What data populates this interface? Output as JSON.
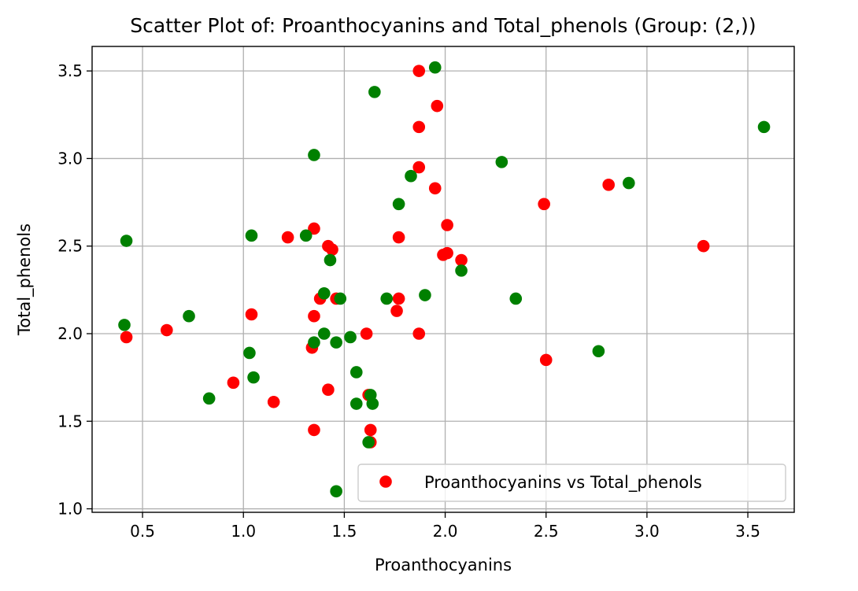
{
  "chart_data": {
    "type": "scatter",
    "title": "Scatter Plot of: Proanthocyanins and Total_phenols (Group: (2,))",
    "xlabel": "Proanthocyanins",
    "ylabel": "Total_phenols",
    "xlim": [
      0.25,
      3.73
    ],
    "ylim": [
      0.98,
      3.64
    ],
    "xticks": [
      0.5,
      1.0,
      1.5,
      2.0,
      2.5,
      3.0,
      3.5
    ],
    "xtick_labels": [
      "0.5",
      "1.0",
      "1.5",
      "2.0",
      "2.5",
      "3.0",
      "3.5"
    ],
    "yticks": [
      1.0,
      1.5,
      2.0,
      2.5,
      3.0,
      3.5
    ],
    "ytick_labels": [
      "1.0",
      "1.5",
      "2.0",
      "2.5",
      "3.0",
      "3.5"
    ],
    "grid": true,
    "legend_position": "lower right",
    "legend_label": "Proanthocyanins vs Total_phenols",
    "colors": {
      "red": "#ff0000",
      "green": "#008000"
    },
    "series": [
      {
        "color": "#ff0000",
        "points": [
          [
            1.87,
            3.5
          ],
          [
            1.96,
            3.3
          ],
          [
            1.87,
            3.18
          ],
          [
            1.87,
            2.95
          ],
          [
            1.95,
            2.83
          ],
          [
            2.01,
            2.62
          ],
          [
            1.77,
            2.55
          ],
          [
            1.99,
            2.45
          ],
          [
            2.01,
            2.46
          ],
          [
            2.08,
            2.42
          ],
          [
            2.49,
            2.74
          ],
          [
            2.81,
            2.85
          ],
          [
            3.28,
            2.5
          ],
          [
            1.77,
            2.2
          ],
          [
            1.76,
            2.13
          ],
          [
            1.87,
            2.0
          ],
          [
            2.5,
            1.85
          ],
          [
            1.35,
            2.6
          ],
          [
            1.22,
            2.55
          ],
          [
            1.42,
            2.5
          ],
          [
            1.44,
            2.48
          ],
          [
            1.38,
            2.2
          ],
          [
            1.46,
            2.2
          ],
          [
            1.35,
            2.1
          ],
          [
            1.04,
            2.11
          ],
          [
            0.62,
            2.02
          ],
          [
            0.42,
            1.98
          ],
          [
            1.34,
            1.92
          ],
          [
            1.61,
            2.0
          ],
          [
            0.95,
            1.72
          ],
          [
            1.42,
            1.68
          ],
          [
            1.15,
            1.61
          ],
          [
            1.62,
            1.65
          ],
          [
            1.35,
            1.45
          ],
          [
            1.63,
            1.45
          ],
          [
            1.63,
            1.38
          ]
        ]
      },
      {
        "color": "#008000",
        "points": [
          [
            1.95,
            3.52
          ],
          [
            1.65,
            3.38
          ],
          [
            3.58,
            3.18
          ],
          [
            1.35,
            3.02
          ],
          [
            2.28,
            2.98
          ],
          [
            1.83,
            2.9
          ],
          [
            2.91,
            2.86
          ],
          [
            1.77,
            2.74
          ],
          [
            0.42,
            2.53
          ],
          [
            1.04,
            2.56
          ],
          [
            1.31,
            2.56
          ],
          [
            1.43,
            2.42
          ],
          [
            2.08,
            2.36
          ],
          [
            1.4,
            2.23
          ],
          [
            1.48,
            2.2
          ],
          [
            1.71,
            2.2
          ],
          [
            1.9,
            2.22
          ],
          [
            2.35,
            2.2
          ],
          [
            0.41,
            2.05
          ],
          [
            0.73,
            2.1
          ],
          [
            1.03,
            1.89
          ],
          [
            1.4,
            2.0
          ],
          [
            1.35,
            1.95
          ],
          [
            1.46,
            1.95
          ],
          [
            1.53,
            1.98
          ],
          [
            2.76,
            1.9
          ],
          [
            1.05,
            1.75
          ],
          [
            0.83,
            1.63
          ],
          [
            1.56,
            1.78
          ],
          [
            1.56,
            1.6
          ],
          [
            1.63,
            1.65
          ],
          [
            1.64,
            1.6
          ],
          [
            1.62,
            1.38
          ],
          [
            1.46,
            1.1
          ]
        ]
      }
    ]
  }
}
